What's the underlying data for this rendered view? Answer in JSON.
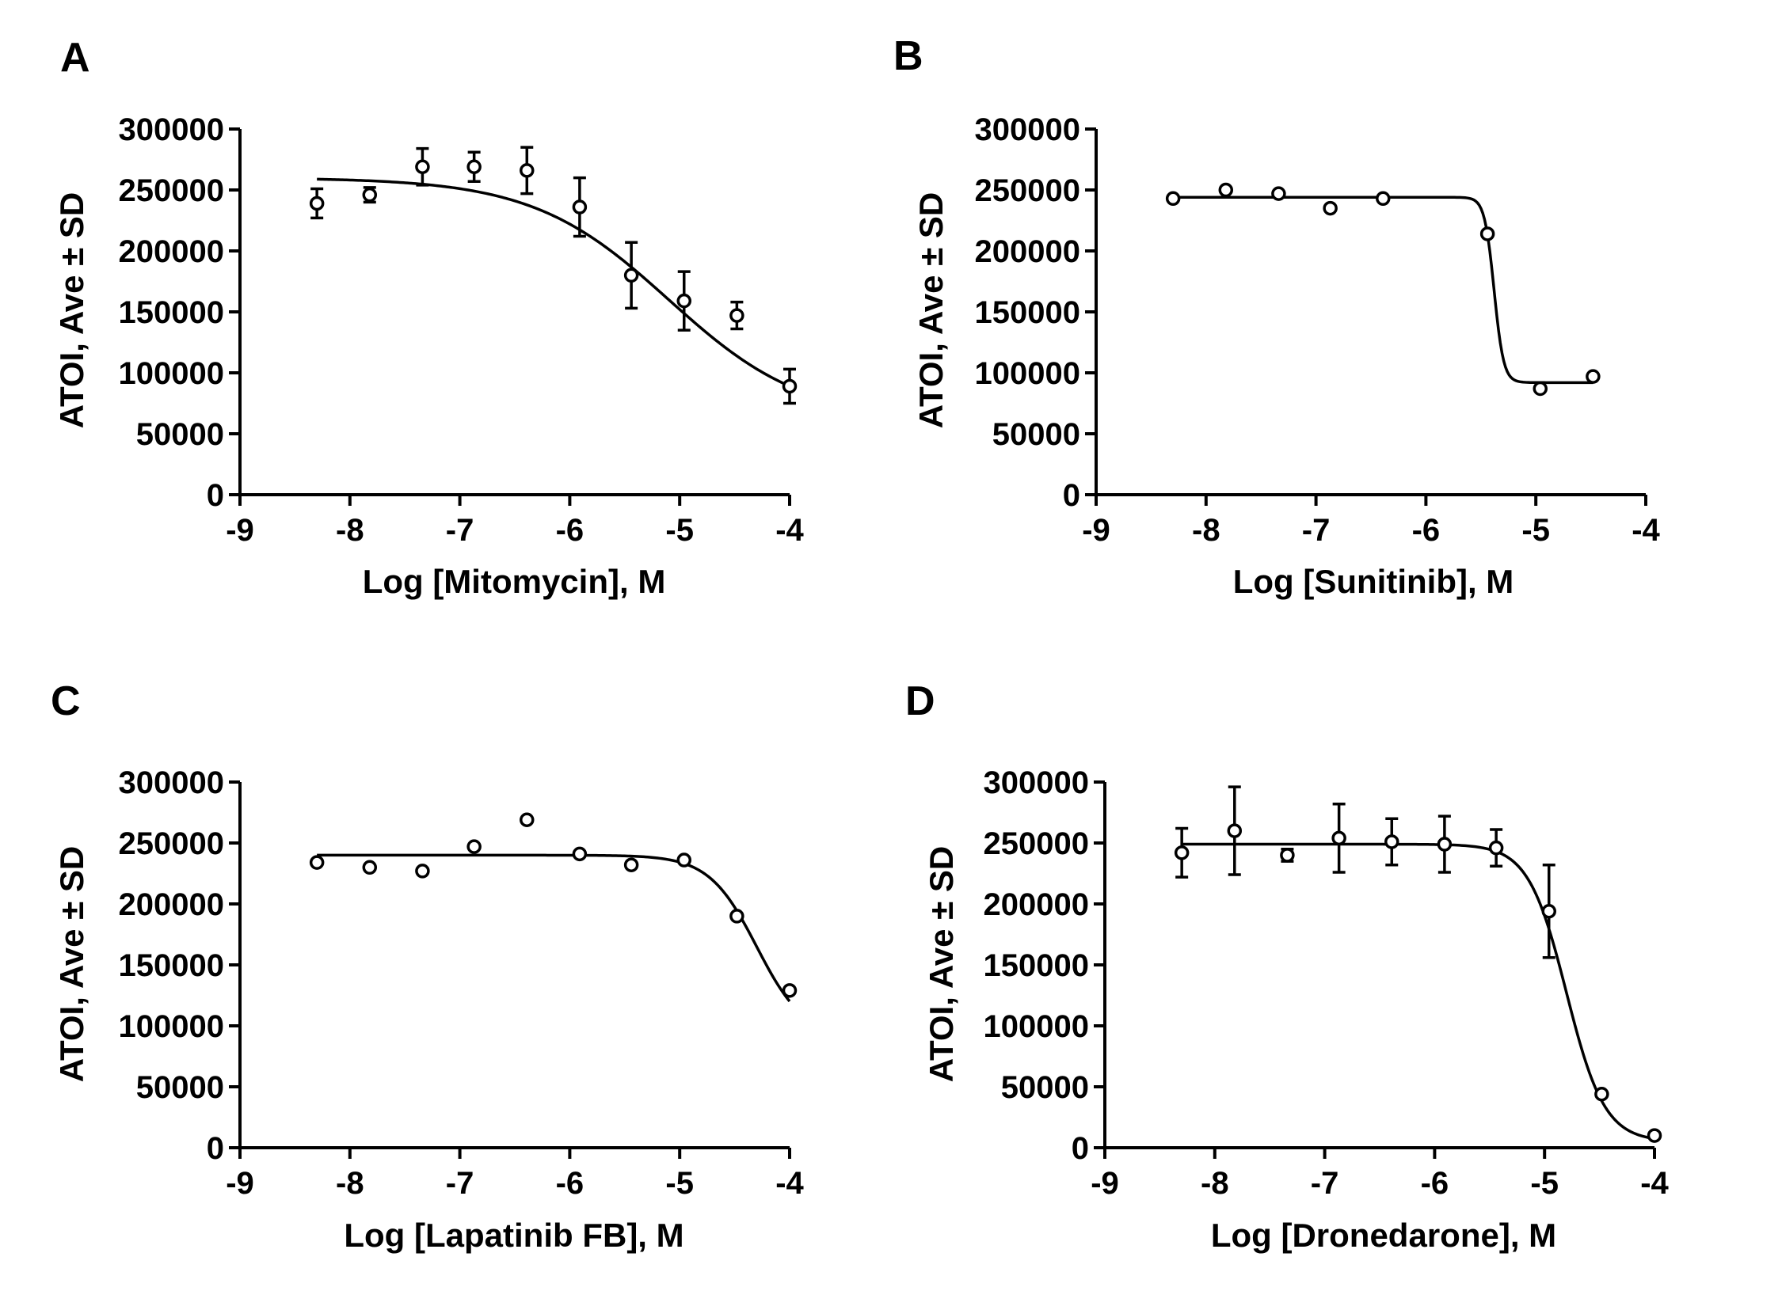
{
  "chart_data": [
    {
      "type": "scatter",
      "panel": "A",
      "title": "",
      "xlabel": "Log [Mitomycin], M",
      "ylabel": "ATOI, Ave ± SD",
      "xlim": [
        -9,
        -4
      ],
      "ylim": [
        0,
        300000
      ],
      "xticks": [
        -9,
        -8,
        -7,
        -6,
        -5,
        -4
      ],
      "yticks": [
        0,
        50000,
        100000,
        150000,
        200000,
        250000,
        300000
      ],
      "grid": false,
      "fit": "sigmoidal dose-response curve",
      "series": [
        {
          "x": [
            -8.3,
            -7.82,
            -7.34,
            -6.87,
            -6.39,
            -5.91,
            -5.44,
            -4.96,
            -4.48,
            -4.0
          ],
          "values": [
            239000,
            246000,
            269000,
            269000,
            266000,
            236000,
            180000,
            159000,
            147000,
            89000
          ],
          "error": [
            12000,
            6000,
            15000,
            12000,
            19000,
            24000,
            27000,
            24000,
            11000,
            14000
          ]
        }
      ],
      "curve": {
        "top": 260000,
        "bottom": 60000,
        "logEC50": -5.1,
        "hill": 0.7
      }
    },
    {
      "type": "scatter",
      "panel": "B",
      "title": "",
      "xlabel": "Log [Sunitinib], M",
      "ylabel": "ATOI, Ave ± SD",
      "xlim": [
        -9,
        -4
      ],
      "ylim": [
        0,
        300000
      ],
      "xticks": [
        -9,
        -8,
        -7,
        -6,
        -5,
        -4
      ],
      "yticks": [
        0,
        50000,
        100000,
        150000,
        200000,
        250000,
        300000
      ],
      "grid": false,
      "fit": "sigmoidal dose-response curve",
      "series": [
        {
          "x": [
            -8.3,
            -7.82,
            -7.34,
            -6.87,
            -6.39,
            -5.44,
            -4.96,
            -4.48
          ],
          "values": [
            243000,
            250000,
            247000,
            235000,
            243000,
            214000,
            87000,
            97000
          ],
          "error": [
            0,
            0,
            0,
            0,
            0,
            0,
            0,
            0
          ]
        }
      ],
      "curve": {
        "top": 244000,
        "bottom": 92000,
        "logEC50": -5.38,
        "hill": 10.0
      }
    },
    {
      "type": "scatter",
      "panel": "C",
      "title": "",
      "xlabel": "Log [Lapatinib FB], M",
      "ylabel": "ATOI, Ave ± SD",
      "xlim": [
        -9,
        -4
      ],
      "ylim": [
        0,
        300000
      ],
      "xticks": [
        -9,
        -8,
        -7,
        -6,
        -5,
        -4
      ],
      "yticks": [
        0,
        50000,
        100000,
        150000,
        200000,
        250000,
        300000
      ],
      "grid": false,
      "fit": "sigmoidal dose-response curve",
      "series": [
        {
          "x": [
            -8.3,
            -7.82,
            -7.34,
            -6.87,
            -6.39,
            -5.91,
            -5.44,
            -4.96,
            -4.48,
            -4.0
          ],
          "values": [
            234000,
            230000,
            227000,
            247000,
            269000,
            241000,
            232000,
            236000,
            190000,
            129000
          ],
          "error": [
            0,
            0,
            0,
            0,
            0,
            0,
            0,
            0,
            0,
            0
          ]
        }
      ],
      "curve": {
        "top": 240000,
        "bottom": 90000,
        "logEC50": -4.3,
        "hill": 2.0
      }
    },
    {
      "type": "scatter",
      "panel": "D",
      "title": "",
      "xlabel": "Log [Dronedarone], M",
      "ylabel": "ATOI, Ave ± SD",
      "xlim": [
        -9,
        -4
      ],
      "ylim": [
        0,
        300000
      ],
      "xticks": [
        -9,
        -8,
        -7,
        -6,
        -5,
        -4
      ],
      "yticks": [
        0,
        50000,
        100000,
        150000,
        200000,
        250000,
        300000
      ],
      "grid": false,
      "fit": "sigmoidal dose-response curve",
      "series": [
        {
          "x": [
            -8.3,
            -7.82,
            -7.34,
            -6.87,
            -6.39,
            -5.91,
            -5.44,
            -4.96,
            -4.48,
            -4.0
          ],
          "values": [
            242000,
            260000,
            240000,
            254000,
            251000,
            249000,
            246000,
            194000,
            44000,
            10000
          ],
          "error": [
            20000,
            36000,
            5000,
            28000,
            19000,
            23000,
            15000,
            38000,
            0,
            0
          ]
        }
      ],
      "curve": {
        "top": 249000,
        "bottom": 5000,
        "logEC50": -4.8,
        "hill": 2.5
      }
    }
  ]
}
